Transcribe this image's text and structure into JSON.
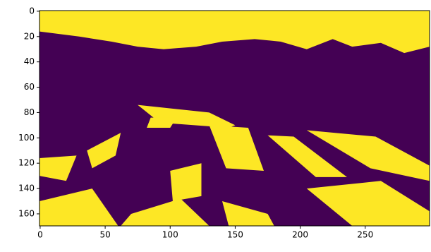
{
  "chart_data": {
    "type": "image",
    "xlim": [
      -0.5,
      299.5
    ],
    "ylim": [
      169.5,
      -0.5
    ],
    "xticks": [
      0,
      50,
      100,
      150,
      200,
      250
    ],
    "yticks": [
      0,
      20,
      40,
      60,
      80,
      100,
      120,
      140,
      160
    ],
    "colormap": [
      "#440154",
      "#fde725"
    ]
  }
}
